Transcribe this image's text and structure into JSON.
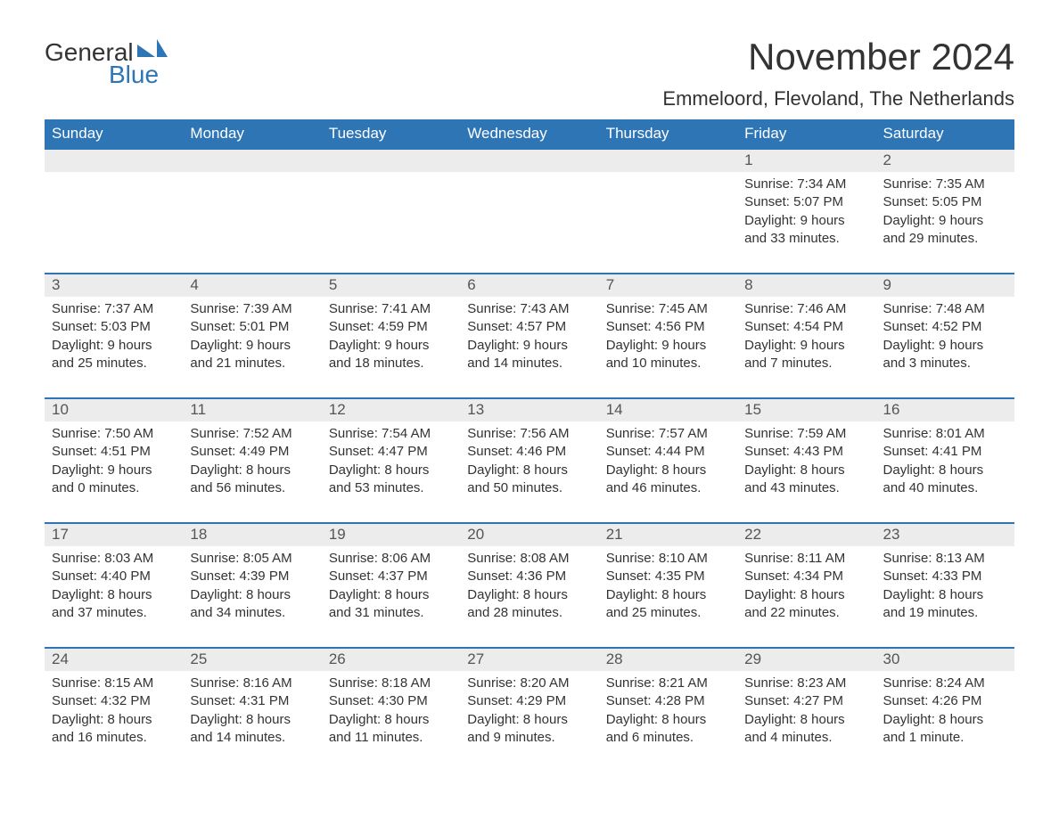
{
  "brand": {
    "word1": "General",
    "word2": "Blue",
    "icon_color": "#2e75b6",
    "text_color_general": "#333333",
    "text_color_blue": "#2e75b6"
  },
  "title": "November 2024",
  "location": "Emmeloord, Flevoland, The Netherlands",
  "colors": {
    "header_bg": "#2e75b6",
    "header_text": "#ffffff",
    "daynum_bg": "#ececec",
    "daynum_text": "#555555",
    "body_text": "#333333",
    "page_bg": "#ffffff",
    "row_border": "#2e75b6"
  },
  "fonts": {
    "month_title_size": 42,
    "location_size": 22,
    "weekday_size": 17,
    "daynum_size": 17,
    "cell_size": 15
  },
  "weekdays": [
    "Sunday",
    "Monday",
    "Tuesday",
    "Wednesday",
    "Thursday",
    "Friday",
    "Saturday"
  ],
  "weeks": [
    [
      null,
      null,
      null,
      null,
      null,
      {
        "n": "1",
        "sunrise": "Sunrise: 7:34 AM",
        "sunset": "Sunset: 5:07 PM",
        "daylight": "Daylight: 9 hours and 33 minutes."
      },
      {
        "n": "2",
        "sunrise": "Sunrise: 7:35 AM",
        "sunset": "Sunset: 5:05 PM",
        "daylight": "Daylight: 9 hours and 29 minutes."
      }
    ],
    [
      {
        "n": "3",
        "sunrise": "Sunrise: 7:37 AM",
        "sunset": "Sunset: 5:03 PM",
        "daylight": "Daylight: 9 hours and 25 minutes."
      },
      {
        "n": "4",
        "sunrise": "Sunrise: 7:39 AM",
        "sunset": "Sunset: 5:01 PM",
        "daylight": "Daylight: 9 hours and 21 minutes."
      },
      {
        "n": "5",
        "sunrise": "Sunrise: 7:41 AM",
        "sunset": "Sunset: 4:59 PM",
        "daylight": "Daylight: 9 hours and 18 minutes."
      },
      {
        "n": "6",
        "sunrise": "Sunrise: 7:43 AM",
        "sunset": "Sunset: 4:57 PM",
        "daylight": "Daylight: 9 hours and 14 minutes."
      },
      {
        "n": "7",
        "sunrise": "Sunrise: 7:45 AM",
        "sunset": "Sunset: 4:56 PM",
        "daylight": "Daylight: 9 hours and 10 minutes."
      },
      {
        "n": "8",
        "sunrise": "Sunrise: 7:46 AM",
        "sunset": "Sunset: 4:54 PM",
        "daylight": "Daylight: 9 hours and 7 minutes."
      },
      {
        "n": "9",
        "sunrise": "Sunrise: 7:48 AM",
        "sunset": "Sunset: 4:52 PM",
        "daylight": "Daylight: 9 hours and 3 minutes."
      }
    ],
    [
      {
        "n": "10",
        "sunrise": "Sunrise: 7:50 AM",
        "sunset": "Sunset: 4:51 PM",
        "daylight": "Daylight: 9 hours and 0 minutes."
      },
      {
        "n": "11",
        "sunrise": "Sunrise: 7:52 AM",
        "sunset": "Sunset: 4:49 PM",
        "daylight": "Daylight: 8 hours and 56 minutes."
      },
      {
        "n": "12",
        "sunrise": "Sunrise: 7:54 AM",
        "sunset": "Sunset: 4:47 PM",
        "daylight": "Daylight: 8 hours and 53 minutes."
      },
      {
        "n": "13",
        "sunrise": "Sunrise: 7:56 AM",
        "sunset": "Sunset: 4:46 PM",
        "daylight": "Daylight: 8 hours and 50 minutes."
      },
      {
        "n": "14",
        "sunrise": "Sunrise: 7:57 AM",
        "sunset": "Sunset: 4:44 PM",
        "daylight": "Daylight: 8 hours and 46 minutes."
      },
      {
        "n": "15",
        "sunrise": "Sunrise: 7:59 AM",
        "sunset": "Sunset: 4:43 PM",
        "daylight": "Daylight: 8 hours and 43 minutes."
      },
      {
        "n": "16",
        "sunrise": "Sunrise: 8:01 AM",
        "sunset": "Sunset: 4:41 PM",
        "daylight": "Daylight: 8 hours and 40 minutes."
      }
    ],
    [
      {
        "n": "17",
        "sunrise": "Sunrise: 8:03 AM",
        "sunset": "Sunset: 4:40 PM",
        "daylight": "Daylight: 8 hours and 37 minutes."
      },
      {
        "n": "18",
        "sunrise": "Sunrise: 8:05 AM",
        "sunset": "Sunset: 4:39 PM",
        "daylight": "Daylight: 8 hours and 34 minutes."
      },
      {
        "n": "19",
        "sunrise": "Sunrise: 8:06 AM",
        "sunset": "Sunset: 4:37 PM",
        "daylight": "Daylight: 8 hours and 31 minutes."
      },
      {
        "n": "20",
        "sunrise": "Sunrise: 8:08 AM",
        "sunset": "Sunset: 4:36 PM",
        "daylight": "Daylight: 8 hours and 28 minutes."
      },
      {
        "n": "21",
        "sunrise": "Sunrise: 8:10 AM",
        "sunset": "Sunset: 4:35 PM",
        "daylight": "Daylight: 8 hours and 25 minutes."
      },
      {
        "n": "22",
        "sunrise": "Sunrise: 8:11 AM",
        "sunset": "Sunset: 4:34 PM",
        "daylight": "Daylight: 8 hours and 22 minutes."
      },
      {
        "n": "23",
        "sunrise": "Sunrise: 8:13 AM",
        "sunset": "Sunset: 4:33 PM",
        "daylight": "Daylight: 8 hours and 19 minutes."
      }
    ],
    [
      {
        "n": "24",
        "sunrise": "Sunrise: 8:15 AM",
        "sunset": "Sunset: 4:32 PM",
        "daylight": "Daylight: 8 hours and 16 minutes."
      },
      {
        "n": "25",
        "sunrise": "Sunrise: 8:16 AM",
        "sunset": "Sunset: 4:31 PM",
        "daylight": "Daylight: 8 hours and 14 minutes."
      },
      {
        "n": "26",
        "sunrise": "Sunrise: 8:18 AM",
        "sunset": "Sunset: 4:30 PM",
        "daylight": "Daylight: 8 hours and 11 minutes."
      },
      {
        "n": "27",
        "sunrise": "Sunrise: 8:20 AM",
        "sunset": "Sunset: 4:29 PM",
        "daylight": "Daylight: 8 hours and 9 minutes."
      },
      {
        "n": "28",
        "sunrise": "Sunrise: 8:21 AM",
        "sunset": "Sunset: 4:28 PM",
        "daylight": "Daylight: 8 hours and 6 minutes."
      },
      {
        "n": "29",
        "sunrise": "Sunrise: 8:23 AM",
        "sunset": "Sunset: 4:27 PM",
        "daylight": "Daylight: 8 hours and 4 minutes."
      },
      {
        "n": "30",
        "sunrise": "Sunrise: 8:24 AM",
        "sunset": "Sunset: 4:26 PM",
        "daylight": "Daylight: 8 hours and 1 minute."
      }
    ]
  ]
}
